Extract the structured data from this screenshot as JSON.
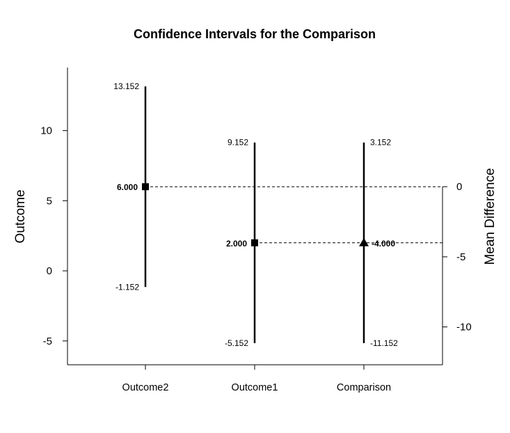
{
  "chart_data": {
    "type": "interval",
    "title": "Confidence Intervals for the Comparison",
    "ylabel": "Outcome",
    "ylabel_right": "Mean Difference",
    "ylim": [
      -6.7,
      14.5
    ],
    "yticks": [
      -5,
      0,
      5,
      10
    ],
    "ylim_right": [
      -12.7,
      8.5
    ],
    "yticks_right": [
      -10,
      -5,
      0
    ],
    "categories": [
      "Outcome2",
      "Outcome1",
      "Comparison"
    ],
    "points": [
      {
        "category": "Outcome2",
        "estimate": 6.0,
        "lower": -1.152,
        "upper": 13.152,
        "marker": "square",
        "estimate_label": "6.000",
        "lower_label": "-1.152",
        "upper_label": "13.152",
        "axis": "left"
      },
      {
        "category": "Outcome1",
        "estimate": 2.0,
        "lower": -5.152,
        "upper": 9.152,
        "marker": "square",
        "estimate_label": "2.000",
        "lower_label": "-5.152",
        "upper_label": "9.152",
        "axis": "left"
      },
      {
        "category": "Comparison",
        "estimate": -4.0,
        "lower": -11.152,
        "upper": 3.152,
        "marker": "triangle",
        "estimate_label": "-4.000",
        "lower_label": "-11.152",
        "upper_label": "3.152",
        "axis": "right"
      }
    ],
    "reference_lines": [
      {
        "axis": "left",
        "value": 6.0,
        "style": "dashed"
      },
      {
        "axis": "left",
        "value": 2.0,
        "style": "dashed"
      }
    ],
    "grid": false
  }
}
